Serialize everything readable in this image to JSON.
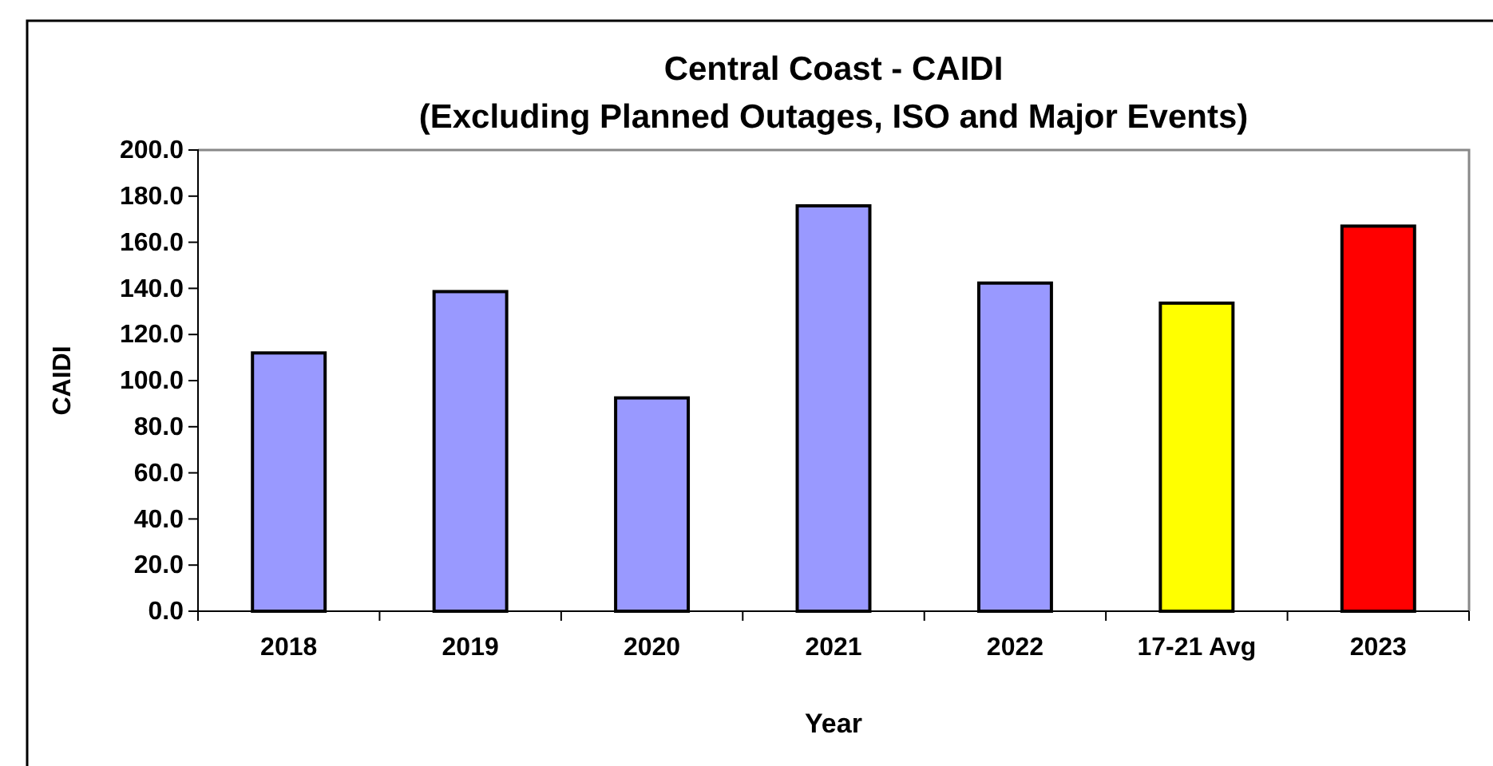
{
  "chart_data": {
    "type": "bar",
    "title": "Central Coast - CAIDI",
    "subtitle": "(Excluding Planned Outages, ISO and Major Events)",
    "xlabel": "Year",
    "ylabel": "CAIDI",
    "categories": [
      "2018",
      "2019",
      "2020",
      "2021",
      "2022",
      "17-21 Avg",
      "2023"
    ],
    "values": [
      112,
      138.6,
      92.5,
      175.8,
      142.3,
      133.6,
      167
    ],
    "colors": [
      "#9999ff",
      "#9999ff",
      "#9999ff",
      "#9999ff",
      "#9999ff",
      "#ffff00",
      "#ff0000"
    ],
    "ylim": [
      0,
      200
    ],
    "yticks": [
      {
        "value": 0,
        "label": "0.0"
      },
      {
        "value": 20,
        "label": "20.0"
      },
      {
        "value": 40,
        "label": "40.0"
      },
      {
        "value": 60,
        "label": "60.0"
      },
      {
        "value": 80,
        "label": "80.0"
      },
      {
        "value": 100,
        "label": "100.0"
      },
      {
        "value": 120,
        "label": "120.0"
      },
      {
        "value": 140,
        "label": "140.0"
      },
      {
        "value": 160,
        "label": "160.0"
      },
      {
        "value": 180,
        "label": "180.0"
      },
      {
        "value": 200,
        "label": "200.0"
      }
    ],
    "grid": false
  }
}
